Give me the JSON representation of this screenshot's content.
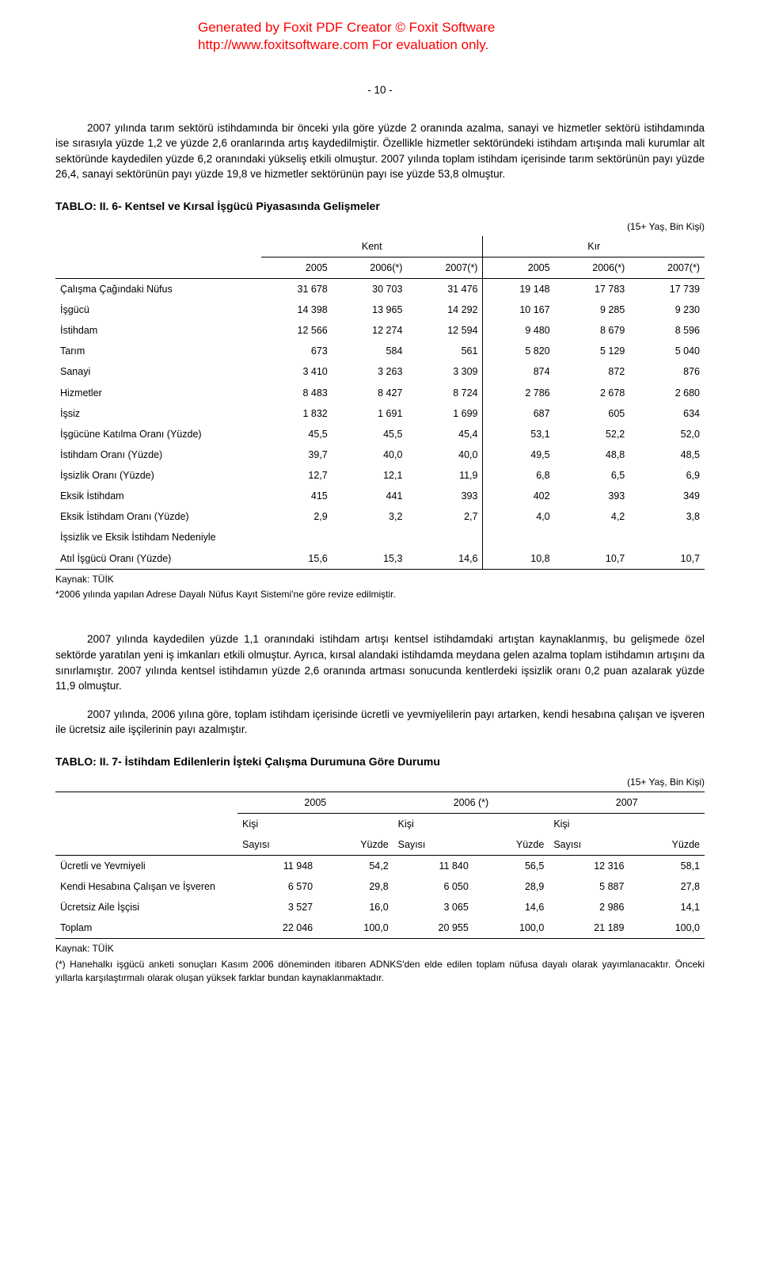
{
  "watermark": {
    "line1": "Generated by Foxit PDF Creator © Foxit Software",
    "line2": "http://www.foxitsoftware.com   For evaluation only."
  },
  "page_number": "- 10 -",
  "para1": "2007 yılında tarım sektörü istihdamında bir önceki yıla göre yüzde 2 oranında azalma, sanayi ve hizmetler sektörü istihdamında ise sırasıyla yüzde 1,2 ve yüzde 2,6 oranlarında artış kaydedilmiştir. Özellikle hizmetler sektöründeki istihdam artışında mali kurumlar alt sektöründe kaydedilen yüzde 6,2 oranındaki yükseliş etkili olmuştur. 2007 yılında toplam istihdam içerisinde tarım sektörünün payı yüzde 26,4, sanayi sektörünün payı yüzde 19,8 ve hizmetler sektörünün payı ise yüzde 53,8 olmuştur.",
  "table6": {
    "title": "TABLO: II. 6- Kentsel ve Kırsal İşgücü Piyasasında Gelişmeler",
    "unit": "(15+ Yaş, Bin Kişi)",
    "groups": [
      "Kent",
      "Kır"
    ],
    "years": [
      "2005",
      "2006(*)",
      "2007(*)",
      "2005",
      "2006(*)",
      "2007(*)"
    ],
    "rows": [
      {
        "label": "Çalışma Çağındaki Nüfus",
        "v": [
          "31 678",
          "30 703",
          "31 476",
          "19 148",
          "17 783",
          "17 739"
        ]
      },
      {
        "label": "İşgücü",
        "v": [
          "14 398",
          "13 965",
          "14 292",
          "10 167",
          "9 285",
          "9 230"
        ]
      },
      {
        "label": "İstihdam",
        "v": [
          "12 566",
          "12 274",
          "12 594",
          "9 480",
          "8 679",
          "8 596"
        ]
      },
      {
        "label": "Tarım",
        "v": [
          "673",
          "584",
          "561",
          "5 820",
          "5 129",
          "5 040"
        ]
      },
      {
        "label": "Sanayi",
        "v": [
          "3 410",
          "3 263",
          "3 309",
          "874",
          "872",
          "876"
        ]
      },
      {
        "label": "Hizmetler",
        "v": [
          "8 483",
          "8 427",
          "8 724",
          "2 786",
          "2 678",
          "2 680"
        ]
      },
      {
        "label": "İşsiz",
        "v": [
          "1 832",
          "1 691",
          "1 699",
          "687",
          "605",
          "634"
        ]
      },
      {
        "label": "İşgücüne Katılma Oranı (Yüzde)",
        "v": [
          "45,5",
          "45,5",
          "45,4",
          "53,1",
          "52,2",
          "52,0"
        ]
      },
      {
        "label": "İstihdam Oranı (Yüzde)",
        "v": [
          "39,7",
          "40,0",
          "40,0",
          "49,5",
          "48,8",
          "48,5"
        ]
      },
      {
        "label": "İşsizlik Oranı (Yüzde)",
        "v": [
          "12,7",
          "12,1",
          "11,9",
          "6,8",
          "6,5",
          "6,9"
        ]
      },
      {
        "label": "Eksik İstihdam",
        "v": [
          "415",
          "441",
          "393",
          "402",
          "393",
          "349"
        ]
      },
      {
        "label": "Eksik İstihdam Oranı (Yüzde)",
        "v": [
          "2,9",
          "3,2",
          "2,7",
          "4,0",
          "4,2",
          "3,8"
        ]
      },
      {
        "label": "İşsizlik ve Eksik İstihdam Nedeniyle",
        "v": [
          "",
          "",
          "",
          "",
          "",
          ""
        ]
      },
      {
        "label": "Atıl İşgücü Oranı (Yüzde)",
        "v": [
          "15,6",
          "15,3",
          "14,6",
          "10,8",
          "10,7",
          "10,7"
        ]
      }
    ],
    "source": "Kaynak: TÜİK",
    "footnote": "*2006 yılında yapılan Adrese Dayalı Nüfus Kayıt Sistemi'ne göre revize edilmiştir."
  },
  "para2": "2007 yılında kaydedilen yüzde 1,1 oranındaki istihdam artışı kentsel istihdamdaki artıştan kaynaklanmış, bu gelişmede özel sektörde yaratılan yeni iş imkanları etkili olmuştur. Ayrıca, kırsal alandaki istihdamda meydana gelen azalma toplam istihdamın artışını da sınırlamıştır. 2007 yılında kentsel istihdamın yüzde 2,6 oranında artması sonucunda kentlerdeki işsizlik oranı 0,2 puan azalarak yüzde 11,9 olmuştur.",
  "para3": "2007 yılında, 2006 yılına göre, toplam istihdam içerisinde ücretli ve yevmiyelilerin payı artarken, kendi hesabına çalışan ve işveren ile ücretsiz aile işçilerinin payı azalmıştır.",
  "table7": {
    "title": "TABLO: II. 7- İstihdam Edilenlerin İşteki Çalışma Durumuna Göre Durumu",
    "unit": "(15+ Yaş, Bin Kişi)",
    "year_headers": [
      "2005",
      "2006 (*)",
      "2007"
    ],
    "sub_headers": [
      "Kişi Sayısı",
      "Yüzde",
      "Kişi Sayısı",
      "Yüzde",
      "Kişi Sayısı",
      "Yüzde"
    ],
    "sub_l1": "Kişi",
    "sub_l2_left": "Sayısı",
    "sub_l2_right": "Yüzde",
    "rows": [
      {
        "label": "Ücretli ve Yevmiyeli",
        "v": [
          "11 948",
          "54,2",
          "11 840",
          "56,5",
          "12 316",
          "58,1"
        ]
      },
      {
        "label": "Kendi Hesabına Çalışan ve İşveren",
        "v": [
          "6 570",
          "29,8",
          "6 050",
          "28,9",
          "5 887",
          "27,8"
        ]
      },
      {
        "label": "Ücretsiz Aile İşçisi",
        "v": [
          "3 527",
          "16,0",
          "3 065",
          "14,6",
          "2 986",
          "14,1"
        ]
      },
      {
        "label": "Toplam",
        "v": [
          "22 046",
          "100,0",
          "20 955",
          "100,0",
          "21 189",
          "100,0"
        ]
      }
    ],
    "source": "Kaynak: TÜİK",
    "footnote": "(*) Hanehalkı işgücü anketi sonuçları Kasım 2006 döneminden itibaren ADNKS'den elde edilen toplam nüfusa dayalı olarak yayımlanacaktır. Önceki yıllarla karşılaştırmalı olarak oluşan yüksek farklar bundan kaynaklanmaktadır."
  }
}
